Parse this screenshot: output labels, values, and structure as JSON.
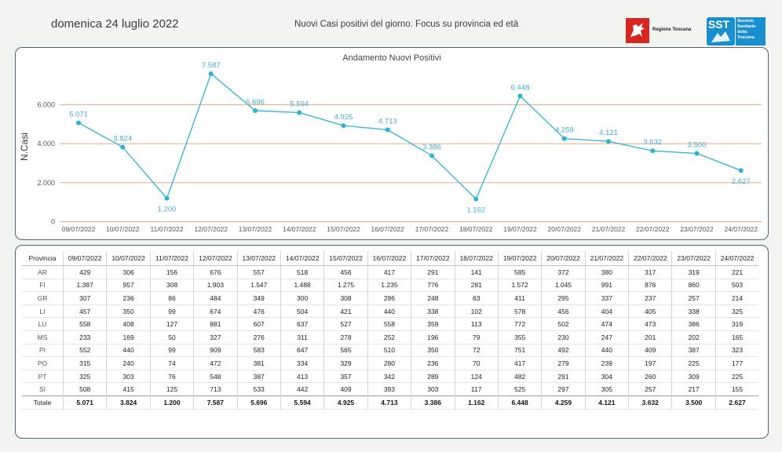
{
  "header": {
    "date": "domenica 24 luglio 2022",
    "subtitle": "Nuovi Casi positivi del giorno. Focus su provincia ed età",
    "logo_toscana": "Regione Toscana",
    "logo_sst_acronym": "SST",
    "logo_sst_lines": [
      "Servizio",
      "Sanitario",
      "della",
      "Toscana"
    ]
  },
  "colors": {
    "line": "#2ab3d6",
    "grid": "#e8a882",
    "label": "#4aa9d6",
    "border": "#4a6670"
  },
  "chart_data": {
    "type": "line",
    "title": "Andamento Nuovi Positivi",
    "ylabel": "N.Casi",
    "xlabel": "",
    "ylim": [
      0,
      7587
    ],
    "yticks": [
      0,
      2000,
      4000,
      6000
    ],
    "ytick_labels": [
      "0",
      "2.000",
      "4.000",
      "6.000"
    ],
    "grid": "horizontal",
    "categories": [
      "09/07/2022",
      "10/07/2022",
      "11/07/2022",
      "12/07/2022",
      "13/07/2022",
      "14/07/2022",
      "15/07/2022",
      "16/07/2022",
      "17/07/2022",
      "18/07/2022",
      "19/07/2022",
      "20/07/2022",
      "21/07/2022",
      "22/07/2022",
      "23/07/2022",
      "24/07/2022"
    ],
    "values": [
      5071,
      3824,
      1200,
      7587,
      5696,
      5594,
      4925,
      4713,
      3386,
      1162,
      6448,
      4259,
      4121,
      3632,
      3500,
      2627
    ],
    "value_labels": [
      "5.071",
      "3.824",
      "1.200",
      "7.587",
      "5.696",
      "5.594",
      "4.925",
      "4.713",
      "3.386",
      "1.162",
      "6.448",
      "4.259",
      "4.121",
      "3.632",
      "3.500",
      "2.627"
    ],
    "label_position": [
      "above",
      "above",
      "below",
      "above",
      "above",
      "above",
      "above",
      "above",
      "above",
      "below",
      "above",
      "above",
      "above",
      "above",
      "above",
      "below"
    ]
  },
  "table": {
    "province_header": "Provincia",
    "dates": [
      "09/07/2022",
      "10/07/2022",
      "11/07/2022",
      "12/07/2022",
      "13/07/2022",
      "14/07/2022",
      "15/07/2022",
      "16/07/2022",
      "17/07/2022",
      "18/07/2022",
      "19/07/2022",
      "20/07/2022",
      "21/07/2022",
      "22/07/2022",
      "23/07/2022",
      "24/07/2022"
    ],
    "rows": [
      {
        "name": "AR",
        "values": [
          "429",
          "306",
          "156",
          "676",
          "557",
          "518",
          "456",
          "417",
          "291",
          "141",
          "585",
          "372",
          "380",
          "317",
          "319",
          "221"
        ]
      },
      {
        "name": "FI",
        "values": [
          "1.387",
          "957",
          "308",
          "1.903",
          "1.547",
          "1.488",
          "1.275",
          "1.235",
          "776",
          "281",
          "1.572",
          "1.045",
          "991",
          "876",
          "860",
          "503"
        ]
      },
      {
        "name": "GR",
        "values": [
          "307",
          "236",
          "86",
          "484",
          "349",
          "300",
          "308",
          "286",
          "248",
          "63",
          "411",
          "295",
          "337",
          "237",
          "257",
          "214"
        ]
      },
      {
        "name": "LI",
        "values": [
          "457",
          "350",
          "99",
          "674",
          "476",
          "504",
          "421",
          "440",
          "338",
          "102",
          "578",
          "456",
          "404",
          "405",
          "338",
          "325"
        ]
      },
      {
        "name": "LU",
        "values": [
          "558",
          "408",
          "127",
          "881",
          "607",
          "637",
          "527",
          "558",
          "359",
          "113",
          "772",
          "502",
          "474",
          "473",
          "386",
          "319"
        ]
      },
      {
        "name": "MS",
        "values": [
          "233",
          "169",
          "50",
          "327",
          "276",
          "311",
          "278",
          "252",
          "196",
          "79",
          "355",
          "230",
          "247",
          "201",
          "202",
          "165"
        ]
      },
      {
        "name": "PI",
        "values": [
          "552",
          "440",
          "99",
          "909",
          "583",
          "647",
          "565",
          "510",
          "350",
          "72",
          "751",
          "492",
          "440",
          "409",
          "387",
          "323"
        ]
      },
      {
        "name": "PO",
        "values": [
          "315",
          "240",
          "74",
          "472",
          "381",
          "334",
          "329",
          "280",
          "236",
          "70",
          "417",
          "279",
          "239",
          "197",
          "225",
          "177"
        ]
      },
      {
        "name": "PT",
        "values": [
          "325",
          "303",
          "76",
          "548",
          "387",
          "413",
          "357",
          "342",
          "289",
          "124",
          "482",
          "291",
          "304",
          "260",
          "309",
          "225"
        ]
      },
      {
        "name": "SI",
        "values": [
          "508",
          "415",
          "125",
          "713",
          "533",
          "442",
          "409",
          "393",
          "303",
          "117",
          "525",
          "297",
          "305",
          "257",
          "217",
          "155"
        ]
      }
    ],
    "total": {
      "name": "Totale",
      "values": [
        "5.071",
        "3.824",
        "1.200",
        "7.587",
        "5.696",
        "5.594",
        "4.925",
        "4.713",
        "3.386",
        "1.162",
        "6.448",
        "4.259",
        "4.121",
        "3.632",
        "3.500",
        "2.627"
      ]
    }
  }
}
